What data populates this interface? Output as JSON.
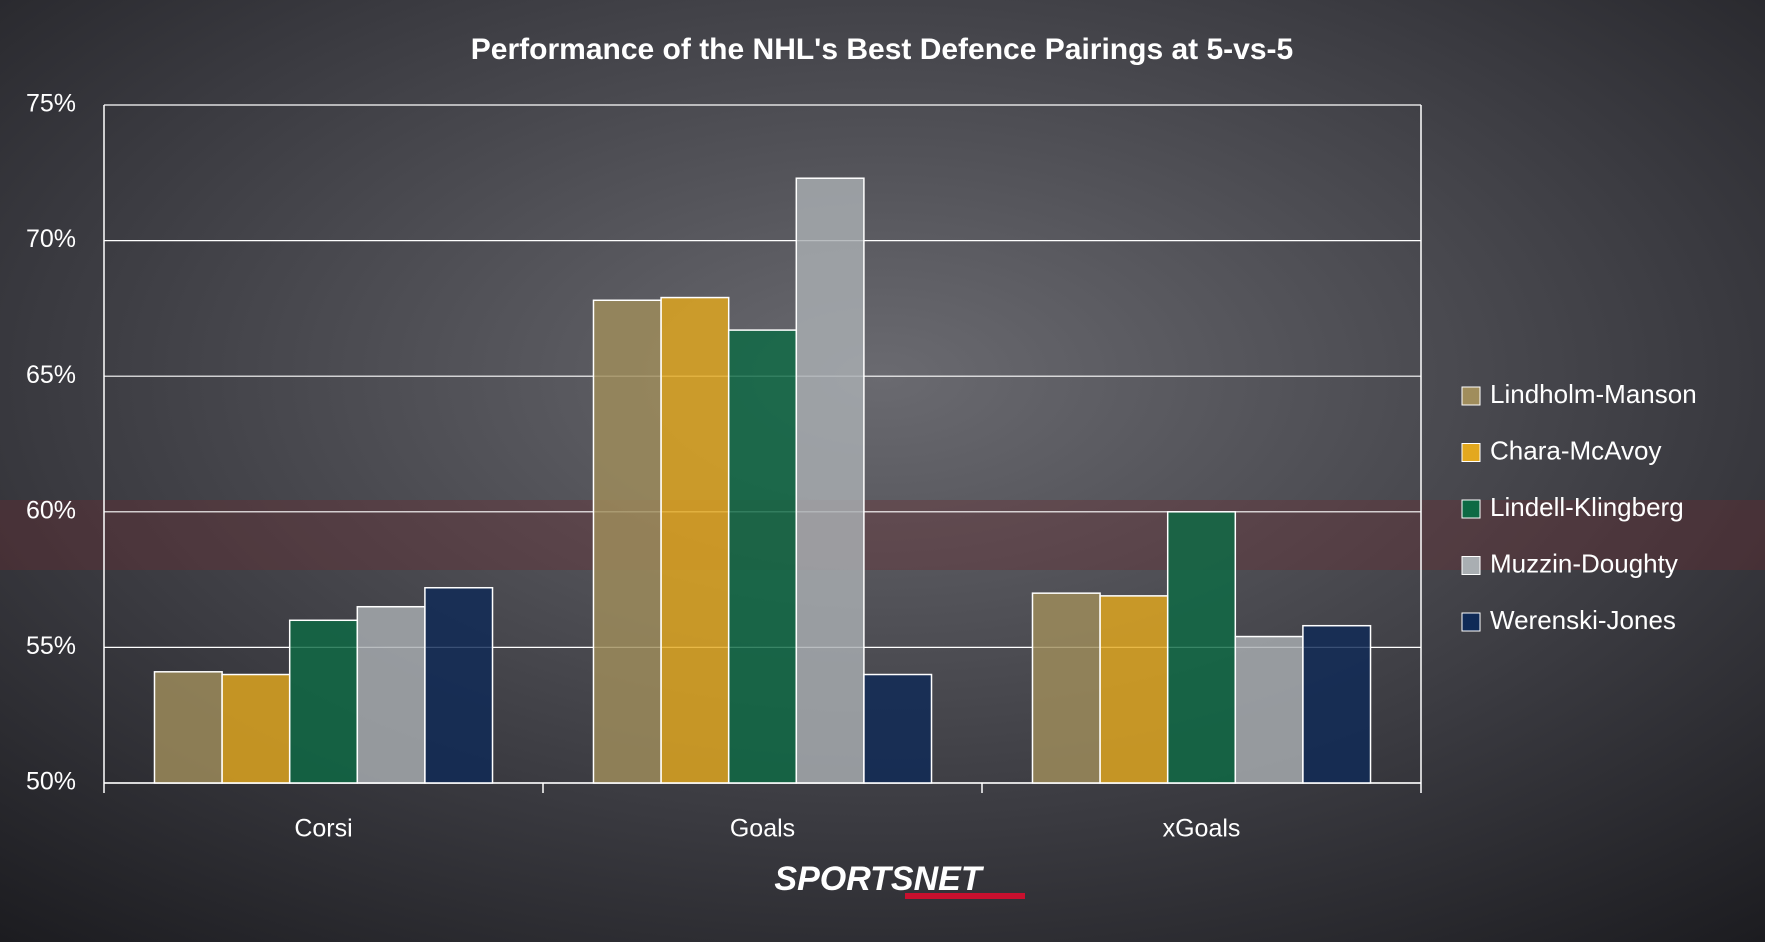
{
  "chart_data": {
    "type": "bar",
    "title": "Performance of the NHL's Best Defence Pairings at 5-vs-5",
    "categories": [
      "Corsi",
      "Goals",
      "xGoals"
    ],
    "series": [
      {
        "name": "Lindholm-Manson",
        "color": "#a08d5c",
        "values": [
          54.1,
          67.8,
          57.0
        ]
      },
      {
        "name": "Chara-McAvoy",
        "color": "#e3a81e",
        "values": [
          54.0,
          67.9,
          56.9
        ]
      },
      {
        "name": "Lindell-Klingberg",
        "color": "#0d6a44",
        "values": [
          56.0,
          66.7,
          60.0
        ]
      },
      {
        "name": "Muzzin-Doughty",
        "color": "#a9aeb2",
        "values": [
          56.5,
          72.3,
          55.4
        ]
      },
      {
        "name": "Werenski-Jones",
        "color": "#0f2a57",
        "values": [
          57.2,
          54.0,
          55.8
        ]
      }
    ],
    "ylim": [
      50,
      75
    ],
    "yticks": [
      {
        "value": 50,
        "label": "50%"
      },
      {
        "value": 55,
        "label": "55%"
      },
      {
        "value": 60,
        "label": "60%"
      },
      {
        "value": 65,
        "label": "65%"
      },
      {
        "value": 70,
        "label": "70%"
      },
      {
        "value": 75,
        "label": "75%"
      }
    ],
    "grid": true,
    "legend": "right",
    "logo": "SPORTSNET"
  }
}
